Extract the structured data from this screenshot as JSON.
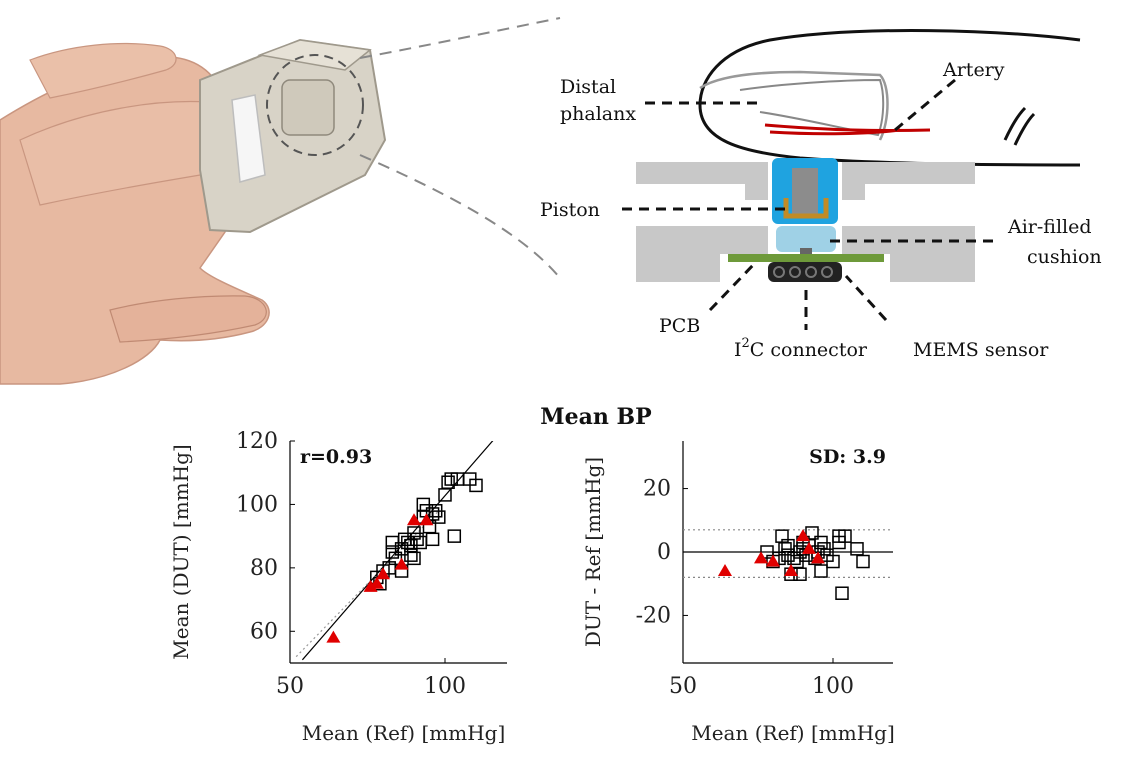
{
  "diagram": {
    "labels": {
      "distal_phalanx_line1": "Distal",
      "distal_phalanx_line2": "phalanx",
      "artery": "Artery",
      "piston": "Piston",
      "air_cushion_line1": "Air-filled",
      "air_cushion_line2": "cushion",
      "pcb": "PCB",
      "i2c_prefix": "I",
      "i2c_sup": "2",
      "i2c_suffix": "C connector",
      "mems": "MEMS sensor"
    }
  },
  "figure": {
    "title": "Mean BP",
    "icons": [
      "hand-device-photo",
      "finger-cross-section-diagram"
    ]
  },
  "chart_data": [
    {
      "type": "scatter",
      "name": "correlation",
      "xlabel": "Mean (Ref) [mmHg]",
      "ylabel": "Mean (DUT) [mmHg]",
      "xlim": [
        50,
        120
      ],
      "ylim": [
        50,
        120
      ],
      "xticks": [
        "50",
        "100"
      ],
      "yticks": [
        "60",
        "80",
        "100",
        "120"
      ],
      "annotation": "r=0.93",
      "grid": false,
      "series": [
        {
          "marker": "square-open",
          "color": "#000000",
          "points": [
            [
              78,
              77
            ],
            [
              79,
              75
            ],
            [
              80,
              79
            ],
            [
              82,
              80
            ],
            [
              83,
              85
            ],
            [
              83,
              88
            ],
            [
              84,
              83
            ],
            [
              86,
              86
            ],
            [
              86,
              79
            ],
            [
              87,
              89
            ],
            [
              88,
              88
            ],
            [
              89,
              84
            ],
            [
              89,
              87
            ],
            [
              90,
              91
            ],
            [
              90,
              83
            ],
            [
              91,
              89
            ],
            [
              92,
              88
            ],
            [
              93,
              96
            ],
            [
              93,
              100
            ],
            [
              94,
              98
            ],
            [
              95,
              93
            ],
            [
              96,
              97
            ],
            [
              96,
              89
            ],
            [
              97,
              98
            ],
            [
              98,
              96
            ],
            [
              100,
              103
            ],
            [
              101,
              107
            ],
            [
              102,
              108
            ],
            [
              103,
              90
            ],
            [
              104,
              108
            ],
            [
              108,
              108
            ],
            [
              110,
              106
            ]
          ]
        },
        {
          "marker": "triangle-filled",
          "color": "#e00000",
          "points": [
            [
              64,
              58
            ],
            [
              76,
              74
            ],
            [
              78,
              75
            ],
            [
              80,
              78
            ],
            [
              86,
              81
            ],
            [
              90,
              95
            ],
            [
              94,
              95
            ]
          ]
        }
      ],
      "lines": [
        {
          "style": "solid",
          "color": "#000000",
          "from": [
            54,
            51
          ],
          "to": [
            118,
            123
          ]
        },
        {
          "style": "dotted",
          "color": "#999999",
          "from": [
            52,
            52
          ],
          "to": [
            98,
            98
          ]
        }
      ]
    },
    {
      "type": "scatter",
      "name": "bland-altman",
      "xlabel": "Mean (Ref) [mmHg]",
      "ylabel": "DUT - Ref [mmHg]",
      "xlim": [
        50,
        120
      ],
      "ylim": [
        -35,
        35
      ],
      "xticks": [
        "50",
        "100"
      ],
      "yticks": [
        "20",
        "0",
        "-20"
      ],
      "annotation": "SD: 3.9",
      "grid": false,
      "series": [
        {
          "marker": "square-open",
          "color": "#000000",
          "points": [
            [
              78,
              0
            ],
            [
              80,
              -3
            ],
            [
              82,
              -2
            ],
            [
              83,
              5
            ],
            [
              84,
              1
            ],
            [
              85,
              -1
            ],
            [
              85,
              2
            ],
            [
              86,
              -7
            ],
            [
              87,
              -2
            ],
            [
              88,
              -3
            ],
            [
              89,
              0
            ],
            [
              89,
              -7
            ],
            [
              90,
              1
            ],
            [
              90,
              3
            ],
            [
              91,
              -1
            ],
            [
              92,
              2
            ],
            [
              93,
              6
            ],
            [
              94,
              -2
            ],
            [
              95,
              0
            ],
            [
              96,
              -6
            ],
            [
              96,
              3
            ],
            [
              97,
              1
            ],
            [
              98,
              -1
            ],
            [
              100,
              -3
            ],
            [
              102,
              5
            ],
            [
              102,
              3
            ],
            [
              103,
              -13
            ],
            [
              104,
              5
            ],
            [
              108,
              1
            ],
            [
              110,
              -3
            ]
          ]
        },
        {
          "marker": "triangle-filled",
          "color": "#e00000",
          "points": [
            [
              64,
              -6
            ],
            [
              76,
              -2
            ],
            [
              80,
              -3
            ],
            [
              86,
              -6
            ],
            [
              90,
              5
            ],
            [
              92,
              1
            ],
            [
              95,
              -2
            ]
          ]
        }
      ],
      "hlines": [
        {
          "value": 0,
          "style": "solid",
          "color": "#000000"
        },
        {
          "value": 7,
          "style": "dotted",
          "color": "#888888"
        },
        {
          "value": -8,
          "style": "dotted",
          "color": "#888888"
        }
      ]
    }
  ]
}
